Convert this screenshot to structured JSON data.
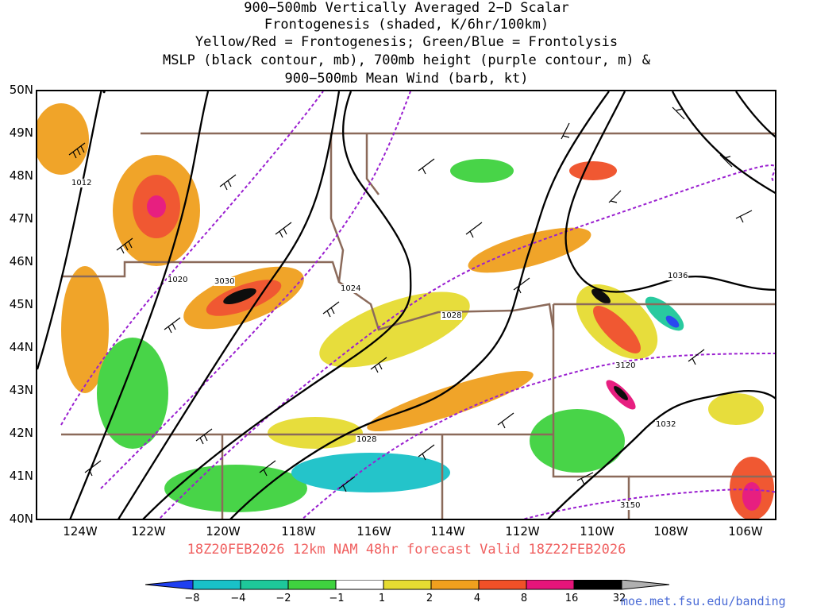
{
  "title_lines": [
    "900−500mb Vertically Averaged 2−D Scalar",
    "Frontogenesis (shaded, K/6hr/100km)",
    "Yellow/Red = Frontogenesis;  Green/Blue = Frontolysis",
    "MSLP (black contour, mb), 700mb height (purple contour, m) &",
    "900−500mb Mean Wind (barb, kt)"
  ],
  "lat_labels": [
    "50N",
    "49N",
    "48N",
    "47N",
    "46N",
    "45N",
    "44N",
    "43N",
    "42N",
    "41N",
    "40N"
  ],
  "lon_labels": [
    "124W",
    "122W",
    "120W",
    "118W",
    "116W",
    "114W",
    "112W",
    "110W",
    "108W",
    "106W"
  ],
  "valid_line": "18Z20FEB2026 12km NAM 48hr forecast Valid 18Z22FEB2026",
  "colorbar": {
    "labels": [
      "−8",
      "−4",
      "−2",
      "−1",
      "1",
      "2",
      "4",
      "8",
      "16",
      "32"
    ],
    "colors": [
      "#1f3ff0",
      "#19c1c8",
      "#1ec89a",
      "#3fd23f",
      "#ffffff",
      "#e6dc32",
      "#f0a01e",
      "#f05028",
      "#e6147a",
      "#000000",
      "#b0b0b0"
    ]
  },
  "contour_labels": [
    "1012",
    "1020",
    "3030",
    "1024",
    "1028",
    "1036",
    "3120",
    "1032",
    "1028",
    "3150"
  ],
  "credit": "moe.met.fsu.edu/banding",
  "colors": {
    "mslp": "#000000",
    "height": "#9a1fd0",
    "state_lines": "#8b6a5a",
    "valid_text": "#f06060",
    "credit_text": "#4a6bd6"
  }
}
